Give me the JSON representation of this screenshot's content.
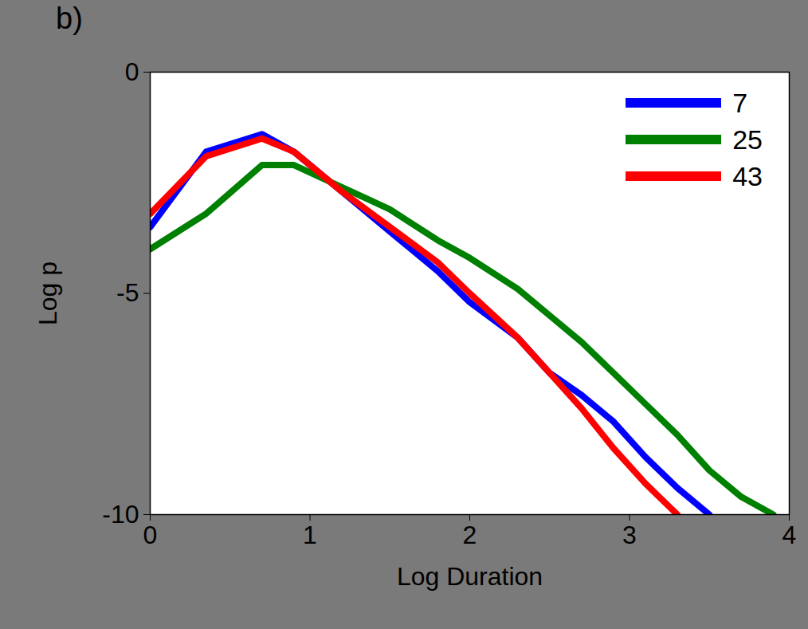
{
  "chart_data": {
    "type": "line",
    "title": "b)",
    "x_label": "Log Duration",
    "y_label": "Log p",
    "x": [
      0,
      0.35,
      0.7,
      0.9,
      1.2,
      1.5,
      1.8,
      2.0,
      2.3,
      2.5,
      2.7,
      2.9,
      3.1,
      3.3,
      3.5,
      3.7,
      3.9
    ],
    "series": [
      {
        "name": "7",
        "color": "#0000ff",
        "values": [
          -3.5,
          -1.8,
          -1.4,
          -1.8,
          -2.7,
          -3.6,
          -4.5,
          -5.2,
          -6.0,
          -6.8,
          -7.3,
          -7.9,
          -8.7,
          -9.4,
          -10,
          null,
          null
        ]
      },
      {
        "name": "25",
        "color": "#008000",
        "values": [
          -4.0,
          -3.2,
          -2.1,
          -2.1,
          -2.6,
          -3.1,
          -3.8,
          -4.2,
          -4.9,
          -5.5,
          -6.1,
          -6.8,
          -7.5,
          -8.2,
          -9.0,
          -9.6,
          -10
        ]
      },
      {
        "name": "43",
        "color": "#ff0000",
        "values": [
          -3.2,
          -1.9,
          -1.5,
          -1.8,
          -2.7,
          -3.5,
          -4.3,
          -5.0,
          -6.0,
          -6.8,
          -7.6,
          -8.5,
          -9.3,
          -10,
          null,
          null,
          null
        ]
      }
    ],
    "xlim": [
      0,
      4
    ],
    "ylim": [
      -10,
      0
    ],
    "xticks": [
      0,
      1,
      2,
      3,
      4
    ],
    "yticks": [
      -10,
      -5,
      0
    ],
    "grid": false,
    "legend": "top-right"
  }
}
